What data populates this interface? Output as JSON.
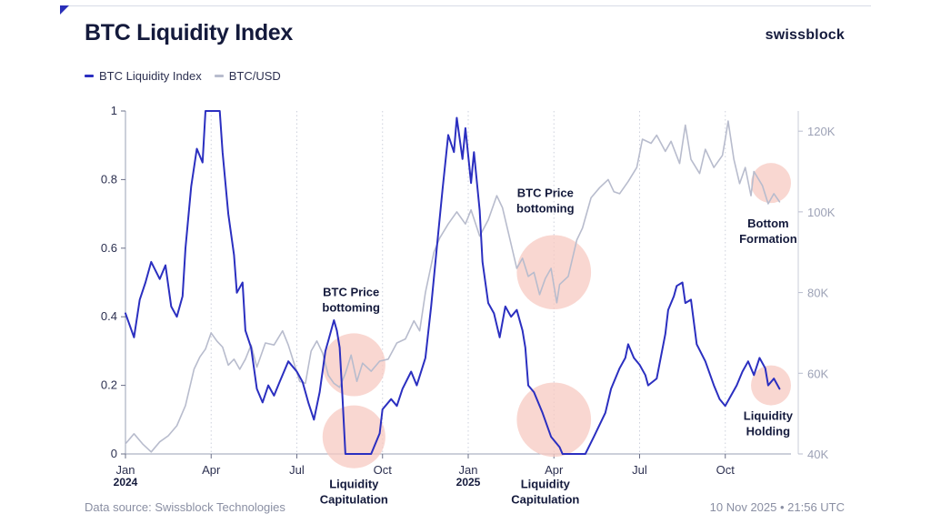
{
  "header": {
    "title": "BTC Liquidity Index",
    "brand": "swissblock"
  },
  "legend": {
    "items": [
      {
        "label": "BTC Liquidity Index",
        "color": "#2b2fc0"
      },
      {
        "label": "BTC/USD",
        "color": "#b8bccd"
      }
    ]
  },
  "footer": {
    "source": "Data source: Swissblock Technologies",
    "timestamp": "10 Nov 2025 • 21:56 UTC"
  },
  "chart_data": {
    "type": "line",
    "title": "BTC Liquidity Index",
    "x_range": [
      0,
      23.3
    ],
    "x_unit": "months since Jan 2024",
    "x_ticks": [
      {
        "t": 0,
        "label": "Jan",
        "sub": "2024"
      },
      {
        "t": 3,
        "label": "Apr",
        "sub": ""
      },
      {
        "t": 6,
        "label": "Jul",
        "sub": ""
      },
      {
        "t": 9,
        "label": "Oct",
        "sub": ""
      },
      {
        "t": 12,
        "label": "Jan",
        "sub": "2025"
      },
      {
        "t": 15,
        "label": "Apr",
        "sub": ""
      },
      {
        "t": 18,
        "label": "Jul",
        "sub": ""
      },
      {
        "t": 21,
        "label": "Oct",
        "sub": ""
      }
    ],
    "y_left": {
      "range": [
        0,
        1
      ],
      "ticks": [
        0,
        0.2,
        0.4,
        0.6,
        0.8,
        1
      ],
      "labels": [
        "0",
        "0.2",
        "0.4",
        "0.6",
        "0.8",
        "1"
      ]
    },
    "y_right": {
      "range": [
        40000,
        125000
      ],
      "ticks": [
        40000,
        60000,
        80000,
        100000,
        120000
      ],
      "labels": [
        "40K",
        "60K",
        "80K",
        "100K",
        "120K"
      ]
    },
    "series": [
      {
        "name": "BTC Liquidity Index",
        "axis": "left",
        "color": "#2b2fc0",
        "points": [
          [
            0,
            0.41
          ],
          [
            0.3,
            0.34
          ],
          [
            0.5,
            0.45
          ],
          [
            0.7,
            0.5
          ],
          [
            0.9,
            0.56
          ],
          [
            1.2,
            0.51
          ],
          [
            1.4,
            0.55
          ],
          [
            1.6,
            0.43
          ],
          [
            1.8,
            0.4
          ],
          [
            2.0,
            0.46
          ],
          [
            2.1,
            0.6
          ],
          [
            2.3,
            0.78
          ],
          [
            2.5,
            0.89
          ],
          [
            2.7,
            0.85
          ],
          [
            2.8,
            1.0
          ],
          [
            3.0,
            1.0
          ],
          [
            3.3,
            1.0
          ],
          [
            3.4,
            0.88
          ],
          [
            3.6,
            0.7
          ],
          [
            3.8,
            0.58
          ],
          [
            3.9,
            0.47
          ],
          [
            4.1,
            0.5
          ],
          [
            4.2,
            0.36
          ],
          [
            4.4,
            0.31
          ],
          [
            4.6,
            0.19
          ],
          [
            4.8,
            0.15
          ],
          [
            5.0,
            0.2
          ],
          [
            5.2,
            0.17
          ],
          [
            5.4,
            0.21
          ],
          [
            5.7,
            0.27
          ],
          [
            6.0,
            0.24
          ],
          [
            6.2,
            0.21
          ],
          [
            6.4,
            0.15
          ],
          [
            6.6,
            0.1
          ],
          [
            6.8,
            0.18
          ],
          [
            7.0,
            0.3
          ],
          [
            7.1,
            0.33
          ],
          [
            7.3,
            0.39
          ],
          [
            7.4,
            0.36
          ],
          [
            7.5,
            0.31
          ],
          [
            7.6,
            0.16
          ],
          [
            7.7,
            0.0
          ],
          [
            8.6,
            0.0
          ],
          [
            8.9,
            0.06
          ],
          [
            9.0,
            0.13
          ],
          [
            9.3,
            0.16
          ],
          [
            9.5,
            0.14
          ],
          [
            9.7,
            0.19
          ],
          [
            10.0,
            0.24
          ],
          [
            10.2,
            0.2
          ],
          [
            10.5,
            0.28
          ],
          [
            10.7,
            0.43
          ],
          [
            10.9,
            0.6
          ],
          [
            11.1,
            0.77
          ],
          [
            11.3,
            0.93
          ],
          [
            11.5,
            0.88
          ],
          [
            11.6,
            0.98
          ],
          [
            11.8,
            0.86
          ],
          [
            11.9,
            0.95
          ],
          [
            12.1,
            0.79
          ],
          [
            12.2,
            0.88
          ],
          [
            12.4,
            0.71
          ],
          [
            12.5,
            0.56
          ],
          [
            12.7,
            0.44
          ],
          [
            12.9,
            0.41
          ],
          [
            13.1,
            0.34
          ],
          [
            13.3,
            0.43
          ],
          [
            13.5,
            0.4
          ],
          [
            13.7,
            0.42
          ],
          [
            13.9,
            0.36
          ],
          [
            14.0,
            0.31
          ],
          [
            14.1,
            0.2
          ],
          [
            14.3,
            0.18
          ],
          [
            14.6,
            0.12
          ],
          [
            14.9,
            0.05
          ],
          [
            15.2,
            0.02
          ],
          [
            15.3,
            0.0
          ],
          [
            16.1,
            0.0
          ],
          [
            16.4,
            0.05
          ],
          [
            16.8,
            0.12
          ],
          [
            17.0,
            0.19
          ],
          [
            17.3,
            0.25
          ],
          [
            17.5,
            0.28
          ],
          [
            17.6,
            0.32
          ],
          [
            17.8,
            0.28
          ],
          [
            18.0,
            0.26
          ],
          [
            18.2,
            0.23
          ],
          [
            18.3,
            0.2
          ],
          [
            18.6,
            0.22
          ],
          [
            18.9,
            0.35
          ],
          [
            19.0,
            0.42
          ],
          [
            19.2,
            0.46
          ],
          [
            19.3,
            0.49
          ],
          [
            19.5,
            0.5
          ],
          [
            19.6,
            0.44
          ],
          [
            19.8,
            0.45
          ],
          [
            20.0,
            0.32
          ],
          [
            20.3,
            0.27
          ],
          [
            20.6,
            0.2
          ],
          [
            20.8,
            0.16
          ],
          [
            21.0,
            0.14
          ],
          [
            21.2,
            0.17
          ],
          [
            21.4,
            0.2
          ],
          [
            21.6,
            0.24
          ],
          [
            21.8,
            0.27
          ],
          [
            22.0,
            0.23
          ],
          [
            22.2,
            0.28
          ],
          [
            22.4,
            0.25
          ],
          [
            22.5,
            0.2
          ],
          [
            22.7,
            0.22
          ],
          [
            22.9,
            0.19
          ]
        ]
      },
      {
        "name": "BTC/USD",
        "axis": "right",
        "color": "#b8bccd",
        "points": [
          [
            0,
            42500
          ],
          [
            0.3,
            45000
          ],
          [
            0.6,
            42500
          ],
          [
            0.9,
            40500
          ],
          [
            1.2,
            43000
          ],
          [
            1.5,
            44500
          ],
          [
            1.8,
            47000
          ],
          [
            2.1,
            52000
          ],
          [
            2.4,
            61000
          ],
          [
            2.6,
            64000
          ],
          [
            2.8,
            66000
          ],
          [
            3.0,
            70000
          ],
          [
            3.2,
            68000
          ],
          [
            3.4,
            66500
          ],
          [
            3.6,
            62000
          ],
          [
            3.8,
            63500
          ],
          [
            4.0,
            61000
          ],
          [
            4.2,
            63500
          ],
          [
            4.4,
            67000
          ],
          [
            4.6,
            61500
          ],
          [
            4.9,
            67500
          ],
          [
            5.2,
            67000
          ],
          [
            5.5,
            70500
          ],
          [
            5.7,
            67000
          ],
          [
            5.9,
            62500
          ],
          [
            6.1,
            58000
          ],
          [
            6.3,
            57500
          ],
          [
            6.5,
            65500
          ],
          [
            6.7,
            68000
          ],
          [
            6.9,
            65000
          ],
          [
            7.1,
            59500
          ],
          [
            7.3,
            57500
          ],
          [
            7.5,
            56500
          ],
          [
            7.7,
            60000
          ],
          [
            7.9,
            64500
          ],
          [
            8.1,
            58000
          ],
          [
            8.3,
            62500
          ],
          [
            8.6,
            60500
          ],
          [
            8.9,
            63000
          ],
          [
            9.2,
            63500
          ],
          [
            9.5,
            67500
          ],
          [
            9.8,
            68500
          ],
          [
            10.1,
            73000
          ],
          [
            10.3,
            70500
          ],
          [
            10.5,
            80000
          ],
          [
            10.8,
            90000
          ],
          [
            11.0,
            93500
          ],
          [
            11.3,
            97000
          ],
          [
            11.6,
            100000
          ],
          [
            11.9,
            97000
          ],
          [
            12.1,
            100500
          ],
          [
            12.4,
            94000
          ],
          [
            12.7,
            98000
          ],
          [
            13.0,
            104000
          ],
          [
            13.2,
            101000
          ],
          [
            13.4,
            95000
          ],
          [
            13.7,
            86000
          ],
          [
            13.9,
            88500
          ],
          [
            14.1,
            84000
          ],
          [
            14.3,
            85000
          ],
          [
            14.5,
            79500
          ],
          [
            14.7,
            83500
          ],
          [
            14.9,
            86000
          ],
          [
            15.1,
            77500
          ],
          [
            15.2,
            82000
          ],
          [
            15.5,
            84000
          ],
          [
            15.8,
            93000
          ],
          [
            16.0,
            96000
          ],
          [
            16.3,
            103500
          ],
          [
            16.6,
            106000
          ],
          [
            16.9,
            108000
          ],
          [
            17.1,
            105000
          ],
          [
            17.3,
            104500
          ],
          [
            17.6,
            107500
          ],
          [
            17.9,
            111000
          ],
          [
            18.1,
            118000
          ],
          [
            18.4,
            117000
          ],
          [
            18.6,
            119000
          ],
          [
            18.9,
            115000
          ],
          [
            19.1,
            117500
          ],
          [
            19.4,
            112000
          ],
          [
            19.6,
            121500
          ],
          [
            19.8,
            113000
          ],
          [
            20.1,
            109500
          ],
          [
            20.3,
            115500
          ],
          [
            20.6,
            111000
          ],
          [
            20.9,
            114000
          ],
          [
            21.0,
            118000
          ],
          [
            21.1,
            122500
          ],
          [
            21.3,
            113000
          ],
          [
            21.5,
            107000
          ],
          [
            21.7,
            111000
          ],
          [
            21.9,
            104000
          ],
          [
            22.0,
            110000
          ],
          [
            22.3,
            106500
          ],
          [
            22.5,
            102000
          ],
          [
            22.7,
            104500
          ],
          [
            22.9,
            102500
          ]
        ]
      }
    ],
    "annotations": [
      {
        "type": "label",
        "text": [
          "BTC Price",
          "bottoming"
        ],
        "t": 7.9,
        "v": 0.46,
        "axis": "left"
      },
      {
        "type": "label",
        "text": [
          "Liquidity",
          "Capitulation"
        ],
        "t": 8.0,
        "v": -0.1,
        "axis": "left"
      },
      {
        "type": "label",
        "text": [
          "BTC Price",
          "bottoming"
        ],
        "t": 14.7,
        "v": 0.75,
        "axis": "left"
      },
      {
        "type": "label",
        "text": [
          "Liquidity",
          "Capitulation"
        ],
        "t": 14.7,
        "v": -0.1,
        "axis": "left"
      },
      {
        "type": "label",
        "text": [
          "Bottom",
          "Formation"
        ],
        "t": 22.5,
        "v": 0.66,
        "axis": "left"
      },
      {
        "type": "label",
        "text": [
          "Liquidity",
          "Holding"
        ],
        "t": 22.5,
        "v": 0.1,
        "axis": "left"
      },
      {
        "type": "circle",
        "t": 8.0,
        "v": 0.26,
        "r_months": 1.1,
        "axis": "left"
      },
      {
        "type": "circle",
        "t": 8.0,
        "v": 0.05,
        "r_months": 1.1,
        "axis": "left"
      },
      {
        "type": "circle",
        "t": 15.0,
        "v": 0.53,
        "r_months": 1.3,
        "axis": "left"
      },
      {
        "type": "circle",
        "t": 15.0,
        "v": 0.1,
        "r_months": 1.3,
        "axis": "left"
      },
      {
        "type": "circle",
        "t": 22.6,
        "v": 0.79,
        "r_months": 0.7,
        "axis": "left"
      },
      {
        "type": "circle",
        "t": 22.6,
        "v": 0.2,
        "r_months": 0.7,
        "axis": "left"
      }
    ]
  }
}
